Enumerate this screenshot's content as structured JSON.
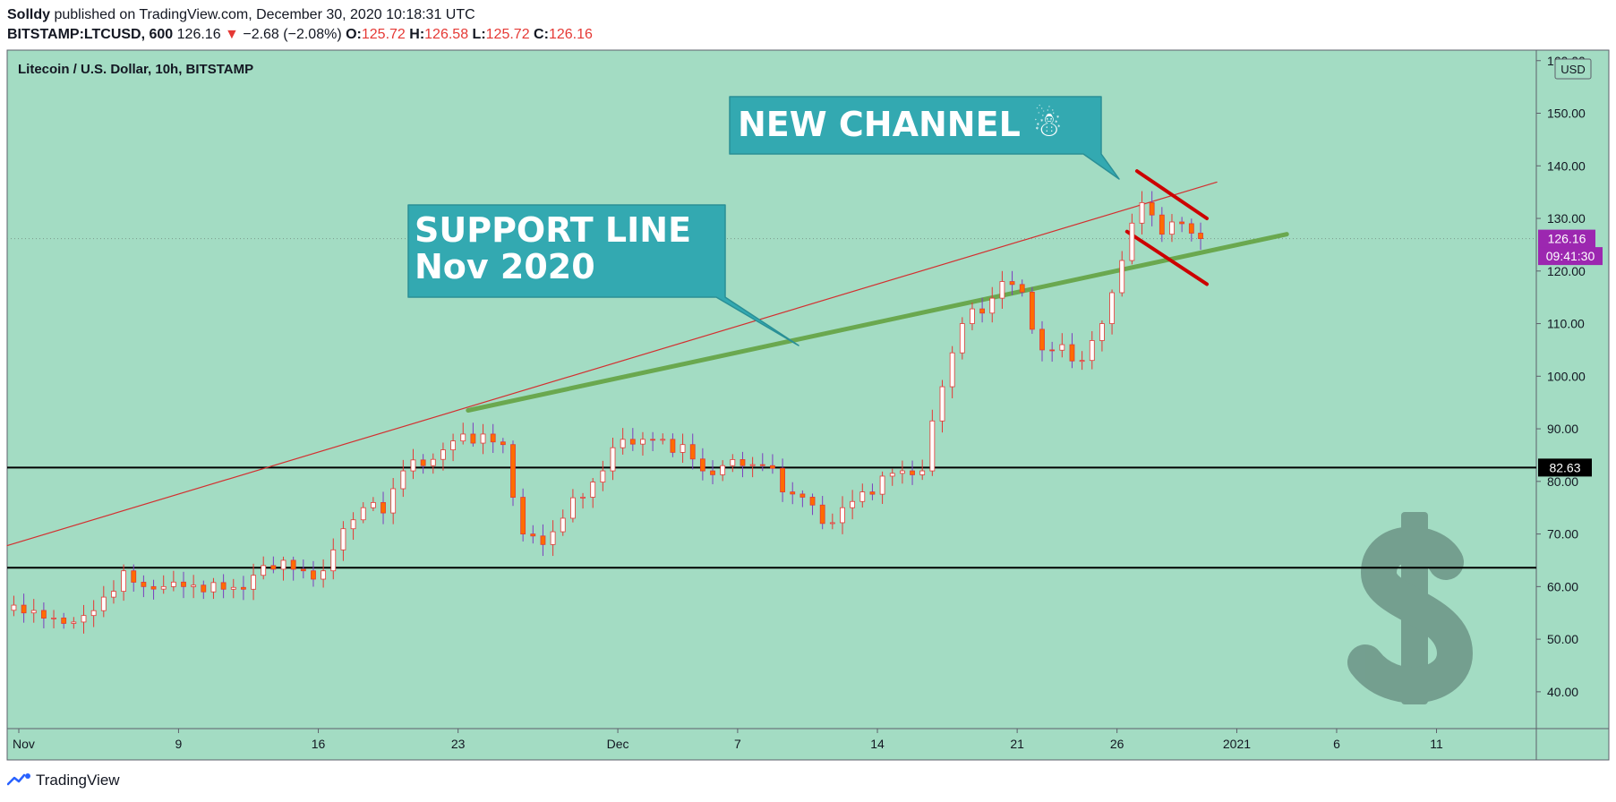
{
  "header": {
    "author": "Solldy",
    "published_text": "published on TradingView.com, December 30, 2020 10:18:31 UTC",
    "symbol": "BITSTAMP:LTCUSD, 600",
    "last": "126.16",
    "change": "−2.68 (−2.08%)",
    "o_label": "O:",
    "o_value": "125.72",
    "h_label": "H:",
    "h_value": "126.58",
    "l_label": "L:",
    "l_value": "125.72",
    "c_label": "C:",
    "c_value": "126.16"
  },
  "chart_data": {
    "type": "candlestick",
    "title": "Litecoin / U.S. Dollar, 10h, BITSTAMP",
    "currency": "USD",
    "ylim": [
      33,
      162
    ],
    "y_ticks": [
      40,
      50,
      60,
      70,
      80,
      90,
      100,
      110,
      120,
      130,
      140,
      150,
      160
    ],
    "y_tick_labels": [
      "40.00",
      "50.00",
      "60.00",
      "70.00",
      "80.00",
      "90.00",
      "100.00",
      "110.00",
      "120.00",
      "130.00",
      "140.00",
      "150.00",
      "160.00"
    ],
    "x_ticks": [
      {
        "label": "Nov",
        "date": "2020-11-01"
      },
      {
        "label": "9",
        "date": "2020-11-09"
      },
      {
        "label": "16",
        "date": "2020-11-16"
      },
      {
        "label": "23",
        "date": "2020-11-23"
      },
      {
        "label": "Dec",
        "date": "2020-12-01"
      },
      {
        "label": "7",
        "date": "2020-12-07"
      },
      {
        "label": "14",
        "date": "2020-12-14"
      },
      {
        "label": "21",
        "date": "2020-12-21"
      },
      {
        "label": "26",
        "date": "2020-12-26"
      },
      {
        "label": "2021",
        "date": "2021-01-01"
      },
      {
        "label": "6",
        "date": "2021-01-06"
      },
      {
        "label": "11",
        "date": "2021-01-11"
      }
    ],
    "x_range": [
      "2020-10-31T10:00",
      "2021-01-16T00:00"
    ],
    "close_series": [
      [
        "2020-10-31T12:00",
        55.5
      ],
      [
        "2020-11-01T12:00",
        55
      ],
      [
        "2020-11-02T12:00",
        54
      ],
      [
        "2020-11-03T12:00",
        53
      ],
      [
        "2020-11-04T12:00",
        54.5
      ],
      [
        "2020-11-05T12:00",
        58
      ],
      [
        "2020-11-06T12:00",
        63
      ],
      [
        "2020-11-07T12:00",
        60
      ],
      [
        "2020-11-08T12:00",
        60
      ],
      [
        "2020-11-09T12:00",
        60
      ],
      [
        "2020-11-10T12:00",
        59
      ],
      [
        "2020-11-11T12:00",
        59.5
      ],
      [
        "2020-11-12T12:00",
        59.5
      ],
      [
        "2020-11-13T12:00",
        64
      ],
      [
        "2020-11-14T12:00",
        65
      ],
      [
        "2020-11-15T12:00",
        63
      ],
      [
        "2020-11-16T12:00",
        63
      ],
      [
        "2020-11-17T12:00",
        71
      ],
      [
        "2020-11-18T12:00",
        75
      ],
      [
        "2020-11-19T12:00",
        74
      ],
      [
        "2020-11-20T12:00",
        82
      ],
      [
        "2020-11-21T12:00",
        83
      ],
      [
        "2020-11-22T12:00",
        86
      ],
      [
        "2020-11-23T12:00",
        89
      ],
      [
        "2020-11-24T12:00",
        89
      ],
      [
        "2020-11-25T12:00",
        87
      ],
      [
        "2020-11-26T12:00",
        70
      ],
      [
        "2020-11-27T12:00",
        68
      ],
      [
        "2020-11-28T12:00",
        73
      ],
      [
        "2020-11-29T12:00",
        77
      ],
      [
        "2020-11-30T12:00",
        82
      ],
      [
        "2020-12-01T12:00",
        88
      ],
      [
        "2020-12-02T12:00",
        88
      ],
      [
        "2020-12-03T12:00",
        88
      ],
      [
        "2020-12-04T12:00",
        87
      ],
      [
        "2020-12-05T12:00",
        82
      ],
      [
        "2020-12-06T12:00",
        83
      ],
      [
        "2020-12-07T12:00",
        83
      ],
      [
        "2020-12-08T12:00",
        83
      ],
      [
        "2020-12-09T12:00",
        78
      ],
      [
        "2020-12-10T12:00",
        77
      ],
      [
        "2020-12-11T12:00",
        72
      ],
      [
        "2020-12-12T12:00",
        75
      ],
      [
        "2020-12-13T12:00",
        78
      ],
      [
        "2020-12-14T12:00",
        81
      ],
      [
        "2020-12-15T12:00",
        82
      ],
      [
        "2020-12-16T12:00",
        82
      ],
      [
        "2020-12-17T12:00",
        98
      ],
      [
        "2020-12-18T12:00",
        110
      ],
      [
        "2020-12-19T12:00",
        112
      ],
      [
        "2020-12-20T12:00",
        118
      ],
      [
        "2020-12-21T12:00",
        116
      ],
      [
        "2020-12-22T12:00",
        105
      ],
      [
        "2020-12-23T12:00",
        106
      ],
      [
        "2020-12-24T12:00",
        103
      ],
      [
        "2020-12-25T12:00",
        110
      ],
      [
        "2020-12-26T12:00",
        122
      ],
      [
        "2020-12-27T12:00",
        133
      ],
      [
        "2020-12-28T12:00",
        127
      ],
      [
        "2020-12-29T12:00",
        129
      ],
      [
        "2020-12-30T10:00",
        126.16
      ]
    ],
    "horizontal_lines": [
      {
        "value": 82.63,
        "label": "82.63"
      },
      {
        "value": 63.6,
        "label": ""
      }
    ],
    "price_labels": [
      {
        "label": "126.16",
        "value": 126.16
      },
      {
        "label": "09:41:30",
        "value": 124.2
      }
    ],
    "trend_lines": [
      {
        "name": "resistance",
        "from": [
          "2020-10-31T10:00",
          67.8
        ],
        "to": [
          "2020-12-31T00:00",
          136.9
        ]
      },
      {
        "name": "support",
        "from": [
          "2020-11-23T12:00",
          93.5
        ],
        "to": [
          "2021-01-03T12:00",
          127
        ]
      },
      {
        "name": "channel-upper",
        "from": [
          "2020-12-27T00:00",
          139
        ],
        "to": [
          "2020-12-30T12:00",
          130
        ]
      },
      {
        "name": "channel-lower",
        "from": [
          "2020-12-26T12:00",
          127.5
        ],
        "to": [
          "2020-12-30T12:00",
          117.5
        ]
      }
    ],
    "annotations": [
      {
        "name": "support-line",
        "lines": [
          "SUPPORT LINE",
          "Nov 2020"
        ]
      },
      {
        "name": "new-channel",
        "lines": [
          "NEW CHANNEL ☃"
        ]
      }
    ],
    "colors": {
      "background": "#a3dcc3",
      "bull": "#ffffff",
      "bear": "#ff6d00",
      "wick": "#e53935",
      "support": "#6aa84f",
      "channel": "#cc0000",
      "callout": "#33a9b1",
      "price_tag": "#9c27b0"
    }
  },
  "footer": {
    "brand": "TradingView"
  }
}
